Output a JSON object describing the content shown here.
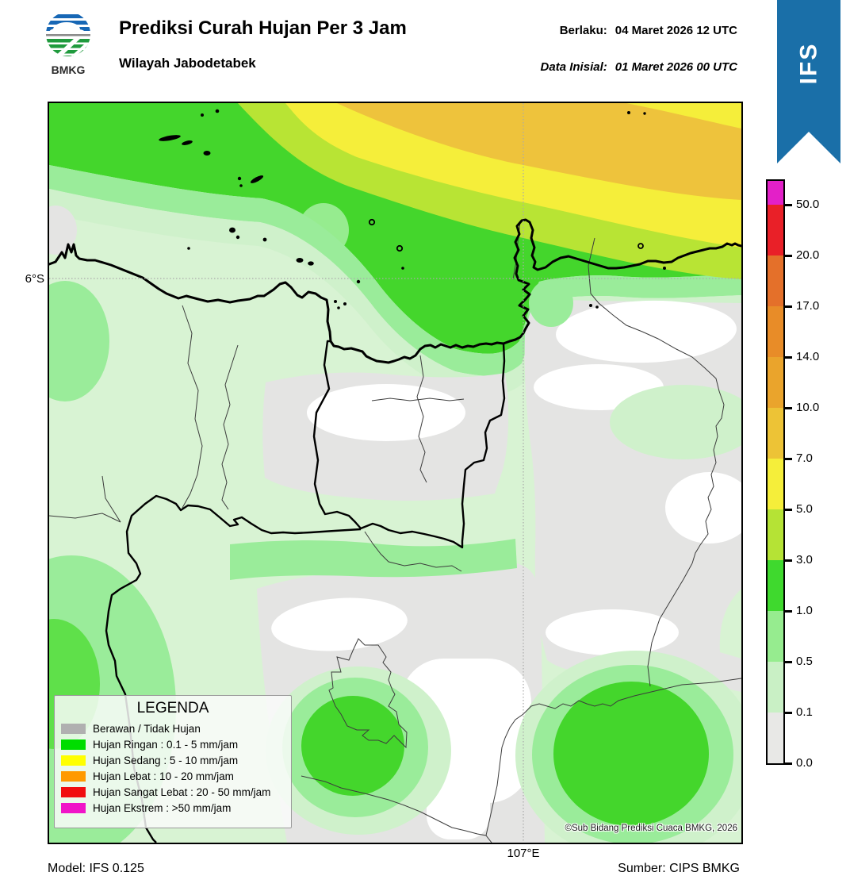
{
  "header": {
    "title": "Prediksi Curah Hujan Per 3 Jam",
    "subtitle": "Wilayah Jabodetabek",
    "valid_label": "Berlaku:",
    "valid_value": "04 Maret 2026 12 UTC",
    "init_label": "Data Inisial:",
    "init_value": "01 Maret 2026 00 UTC",
    "ribbon": "IFS",
    "ribbon_color": "#1a6fa8",
    "logo_text": "BMKG"
  },
  "map": {
    "lat_label": "6°S",
    "lon_label": "107°E",
    "copyright": "©Sub Bidang Prediksi Cuaca BMKG, 2026"
  },
  "legend": {
    "title": "LEGENDA",
    "items": [
      {
        "label": "Berawan / Tidak Hujan",
        "color": "#b0b0b0"
      },
      {
        "label": "Hujan Ringan : 0.1 - 5 mm/jam",
        "color": "#00dd00"
      },
      {
        "label": "Hujan Sedang : 5 - 10 mm/jam",
        "color": "#ffff00"
      },
      {
        "label": "Hujan Lebat : 10 - 20 mm/jam",
        "color": "#ff9900"
      },
      {
        "label": "Hujan Sangat Lebat : 20 - 50 mm/jam",
        "color": "#f10e10"
      },
      {
        "label": "Hujan Ekstrem : >50 mm/jam",
        "color": "#f014c8"
      }
    ]
  },
  "colorbar": {
    "unit": "mm/jam",
    "top_segment_height": 30,
    "segment_height": 64,
    "segments_top_to_bottom": [
      {
        "color": "#e320c8",
        "range": ">50"
      },
      {
        "color": "#e92028",
        "range": "20-50"
      },
      {
        "color": "#e4702a",
        "range": "17-20"
      },
      {
        "color": "#e88c28",
        "range": "14-17"
      },
      {
        "color": "#eaa42c",
        "range": "10-14"
      },
      {
        "color": "#edc336",
        "range": "7-10"
      },
      {
        "color": "#f5ee3a",
        "range": "5-7"
      },
      {
        "color": "#b5e335",
        "range": "3-5"
      },
      {
        "color": "#3fd92e",
        "range": "1-3"
      },
      {
        "color": "#96ec8f",
        "range": "0.5-1"
      },
      {
        "color": "#c9f0c5",
        "range": "0.1-0.5"
      },
      {
        "color": "#e8e8e6",
        "range": "0-0.1"
      }
    ],
    "boundary_labels_top_to_bottom": [
      "50.0",
      "20.0",
      "17.0",
      "14.0",
      "10.0",
      "7.0",
      "5.0",
      "3.0",
      "1.0",
      "0.5",
      "0.1",
      "0.0"
    ]
  },
  "footer": {
    "model": "Model: IFS 0.125",
    "source": "Sumber: CIPS BMKG"
  }
}
